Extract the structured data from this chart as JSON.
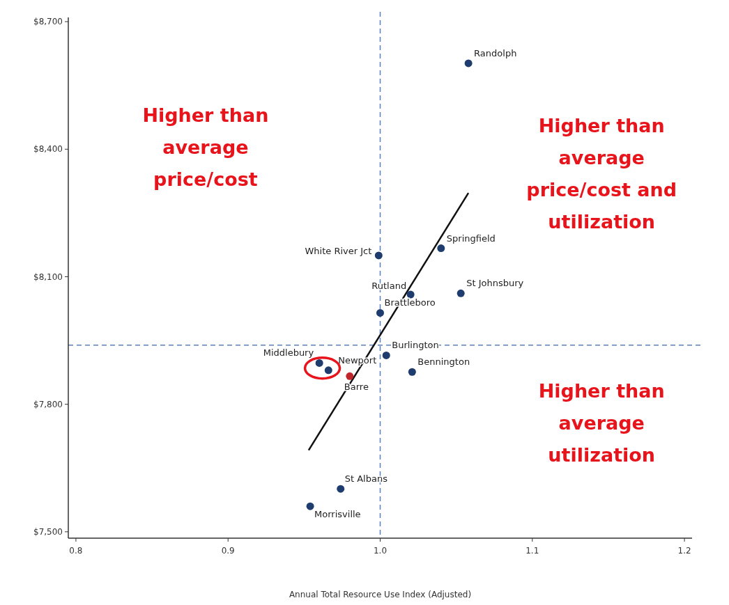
{
  "chart_data": {
    "type": "scatter",
    "xlabel": "Annual Total Resource Use Index (Adjusted)",
    "xlim": [
      0.795,
      1.205
    ],
    "xticks": [
      0.8,
      0.9,
      {
        "value": 1.0,
        "label": "1.0"
      },
      1.1,
      1.2
    ],
    "ylim": [
      7485,
      8710
    ],
    "yticks": [
      {
        "value": 7500,
        "label": "$7,500"
      },
      {
        "value": 7800,
        "label": "$7,800"
      },
      {
        "value": 8100,
        "label": "$8,100"
      },
      {
        "value": 8400,
        "label": "$8,400"
      },
      {
        "value": 8700,
        "label": "$8,700"
      }
    ],
    "grid": false,
    "marker": "circle",
    "series": [
      {
        "name": "Randolph",
        "color": "#1f3c6e",
        "x": [
          1.058
        ],
        "values": [
          8602
        ]
      },
      {
        "name": "Springfield",
        "color": "#1f3c6e",
        "x": [
          1.04
        ],
        "values": [
          8167
        ]
      },
      {
        "name": "White River Jct",
        "color": "#1f3c6e",
        "x": [
          0.999
        ],
        "values": [
          8150
        ]
      },
      {
        "name": "St Johnsbury",
        "color": "#1f3c6e",
        "x": [
          1.053
        ],
        "values": [
          8061
        ]
      },
      {
        "name": "Rutland",
        "color": "#1f3c6e",
        "x": [
          1.02
        ],
        "values": [
          8058
        ]
      },
      {
        "name": "Brattleboro",
        "color": "#1f3c6e",
        "x": [
          1.0
        ],
        "values": [
          8015
        ]
      },
      {
        "name": "Burlington",
        "color": "#1f3c6e",
        "x": [
          1.004
        ],
        "values": [
          7915
        ]
      },
      {
        "name": "Bennington",
        "color": "#1f3c6e",
        "x": [
          1.021
        ],
        "values": [
          7876
        ]
      },
      {
        "name": "Middlebury",
        "color": "#1f3c6e",
        "x": [
          0.96
        ],
        "values": [
          7897
        ]
      },
      {
        "name": "Newport",
        "color": "#1f3c6e",
        "x": [
          0.966
        ],
        "values": [
          7880
        ]
      },
      {
        "name": "Barre",
        "color": "#c0262d",
        "x": [
          0.98
        ],
        "values": [
          7866
        ]
      },
      {
        "name": "St Albans",
        "color": "#1f3c6e",
        "x": [
          0.974
        ],
        "values": [
          7601
        ]
      },
      {
        "name": "Morrisville",
        "color": "#1f3c6e",
        "x": [
          0.954
        ],
        "values": [
          7560
        ]
      },
      {
        "type": "line",
        "color": "#111111",
        "x": [
          0.953,
          1.058
        ],
        "values": [
          7692,
          8297
        ],
        "marker": "none"
      }
    ],
    "ref_lines": [
      {
        "axis": "x",
        "value": 1.0,
        "color": "#5b7fb8",
        "line_style": "dashed"
      },
      {
        "axis": "y",
        "value": 7939,
        "color": "#5b7fb8",
        "line_style": "dashed"
      }
    ],
    "annotations": [
      "Higher than average price/cost",
      "Higher than average price/cost and utilization",
      "Higher than average utilization"
    ]
  }
}
